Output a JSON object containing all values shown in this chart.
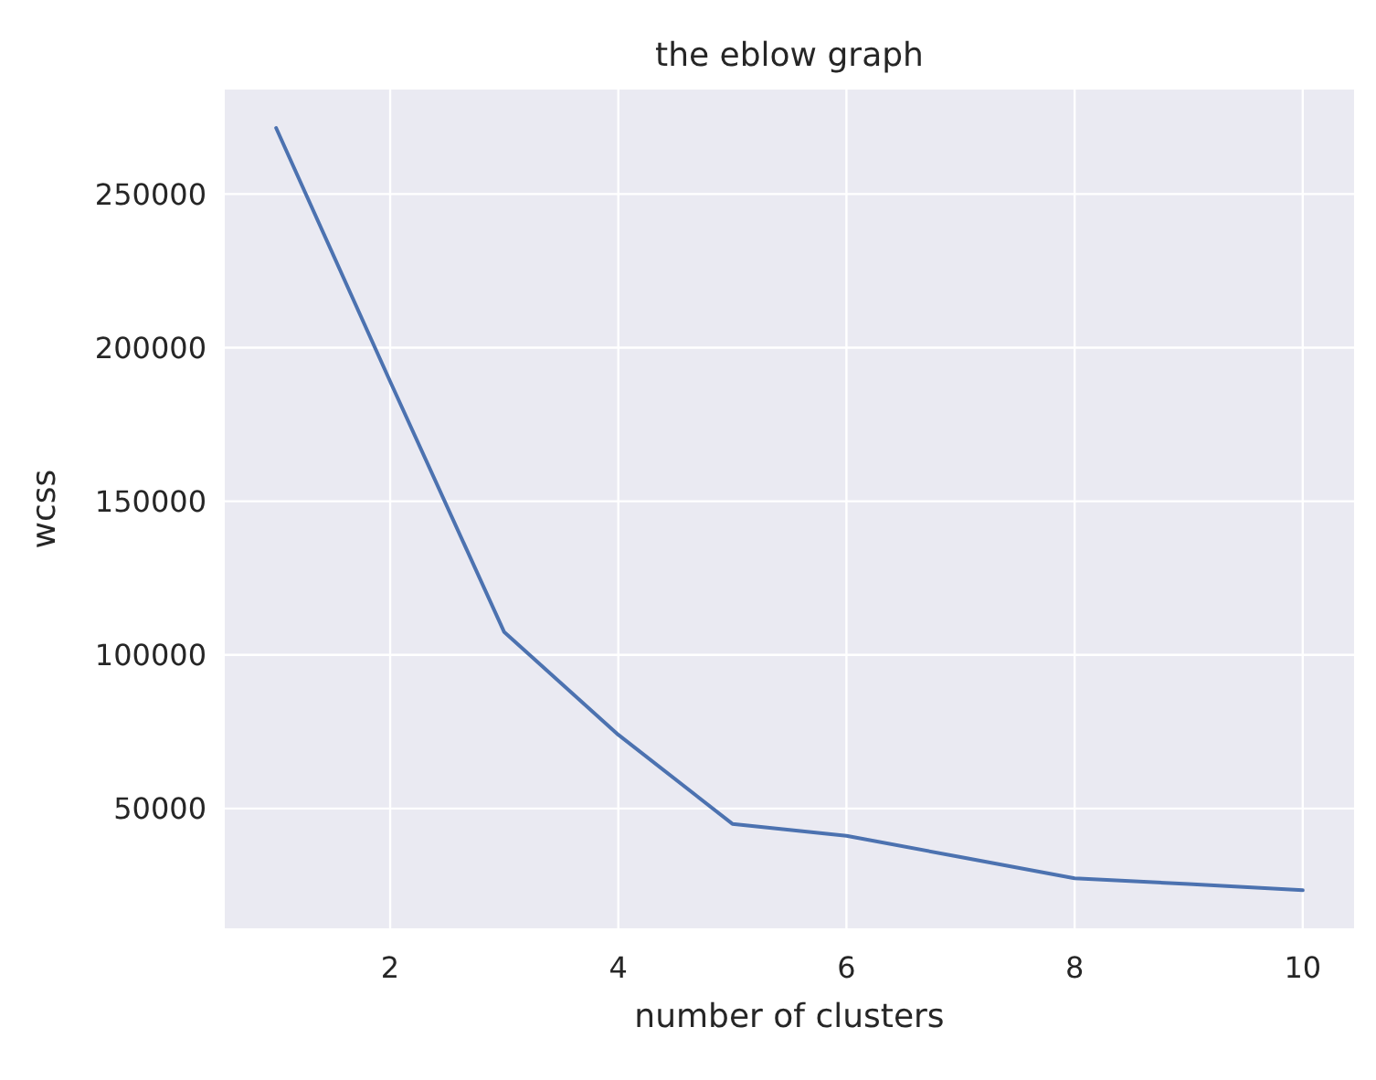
{
  "chart_data": {
    "type": "line",
    "title": "the eblow graph",
    "xlabel": "number of clusters",
    "ylabel": "wcss",
    "x": [
      1,
      2,
      3,
      4,
      5,
      6,
      7,
      8,
      9,
      10
    ],
    "series": [
      {
        "color": "#4c72b0",
        "values": [
          271500,
          189000,
          107400,
          74000,
          45000,
          41100,
          34200,
          27300,
          25400,
          23400
        ]
      }
    ],
    "xlim": [
      0.55,
      10.45
    ],
    "xticks": [
      2,
      4,
      6,
      8,
      10
    ],
    "ylim": [
      11000,
      284000
    ],
    "yticks": [
      50000,
      100000,
      150000,
      200000,
      250000
    ],
    "grid": true,
    "marker": "none",
    "line_style": "solid"
  }
}
